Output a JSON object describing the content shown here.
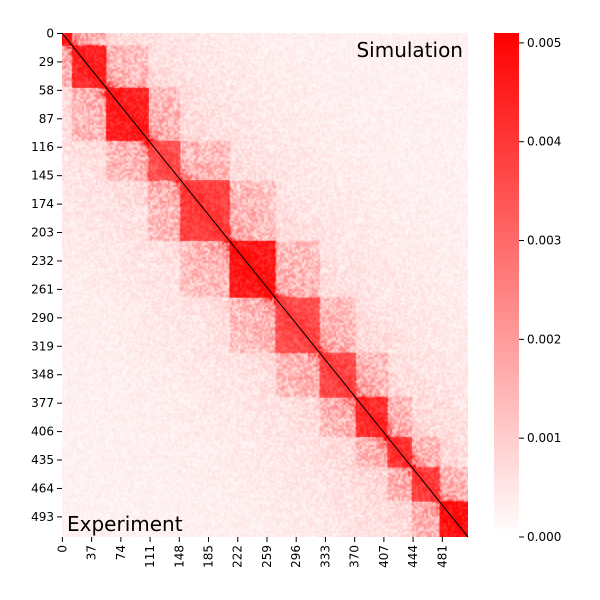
{
  "chart_data": {
    "type": "heatmap",
    "title": "",
    "xlabel": "",
    "ylabel": "",
    "grid": false,
    "n_bins": 514,
    "x_ticks": [
      0,
      37,
      74,
      111,
      148,
      185,
      222,
      259,
      296,
      333,
      370,
      407,
      444,
      481
    ],
    "y_ticks": [
      0,
      29,
      58,
      87,
      116,
      145,
      174,
      203,
      232,
      261,
      290,
      319,
      348,
      377,
      406,
      435,
      464,
      493
    ],
    "x_tick_labels": [
      "0",
      "37",
      "74",
      "111",
      "148",
      "185",
      "222",
      "259",
      "296",
      "333",
      "370",
      "407",
      "444",
      "481"
    ],
    "y_tick_labels": [
      "0",
      "29",
      "58",
      "87",
      "116",
      "145",
      "174",
      "203",
      "232",
      "261",
      "290",
      "319",
      "348",
      "377",
      "406",
      "435",
      "464",
      "493"
    ],
    "annotations": {
      "upper_triangle": "Simulation",
      "lower_triangle": "Experiment"
    },
    "diagonal_line": true,
    "colorbar": {
      "vmin": 0.0,
      "vmax": 0.0051,
      "ticks": [
        0.0,
        0.001,
        0.002,
        0.003,
        0.004,
        0.005
      ],
      "tick_labels": [
        "0.000",
        "0.001",
        "0.002",
        "0.003",
        "0.004",
        "0.005"
      ],
      "colormap": [
        "#ffffff",
        "#ff0000"
      ]
    },
    "domains": [
      {
        "start": 0,
        "end": 13,
        "level": 0.0048
      },
      {
        "start": 13,
        "end": 56,
        "level": 0.0046
      },
      {
        "start": 56,
        "end": 110,
        "level": 0.0047
      },
      {
        "start": 110,
        "end": 150,
        "level": 0.0036
      },
      {
        "start": 150,
        "end": 212,
        "level": 0.004
      },
      {
        "start": 212,
        "end": 270,
        "level": 0.0049
      },
      {
        "start": 270,
        "end": 326,
        "level": 0.0037
      },
      {
        "start": 326,
        "end": 372,
        "level": 0.0038
      },
      {
        "start": 372,
        "end": 412,
        "level": 0.0044
      },
      {
        "start": 412,
        "end": 443,
        "level": 0.0042
      },
      {
        "start": 443,
        "end": 478,
        "level": 0.004
      },
      {
        "start": 478,
        "end": 514,
        "level": 0.005
      }
    ],
    "colors": {
      "max": "#ff0000",
      "min": "#ffffff",
      "diagonal": "#000000"
    }
  }
}
